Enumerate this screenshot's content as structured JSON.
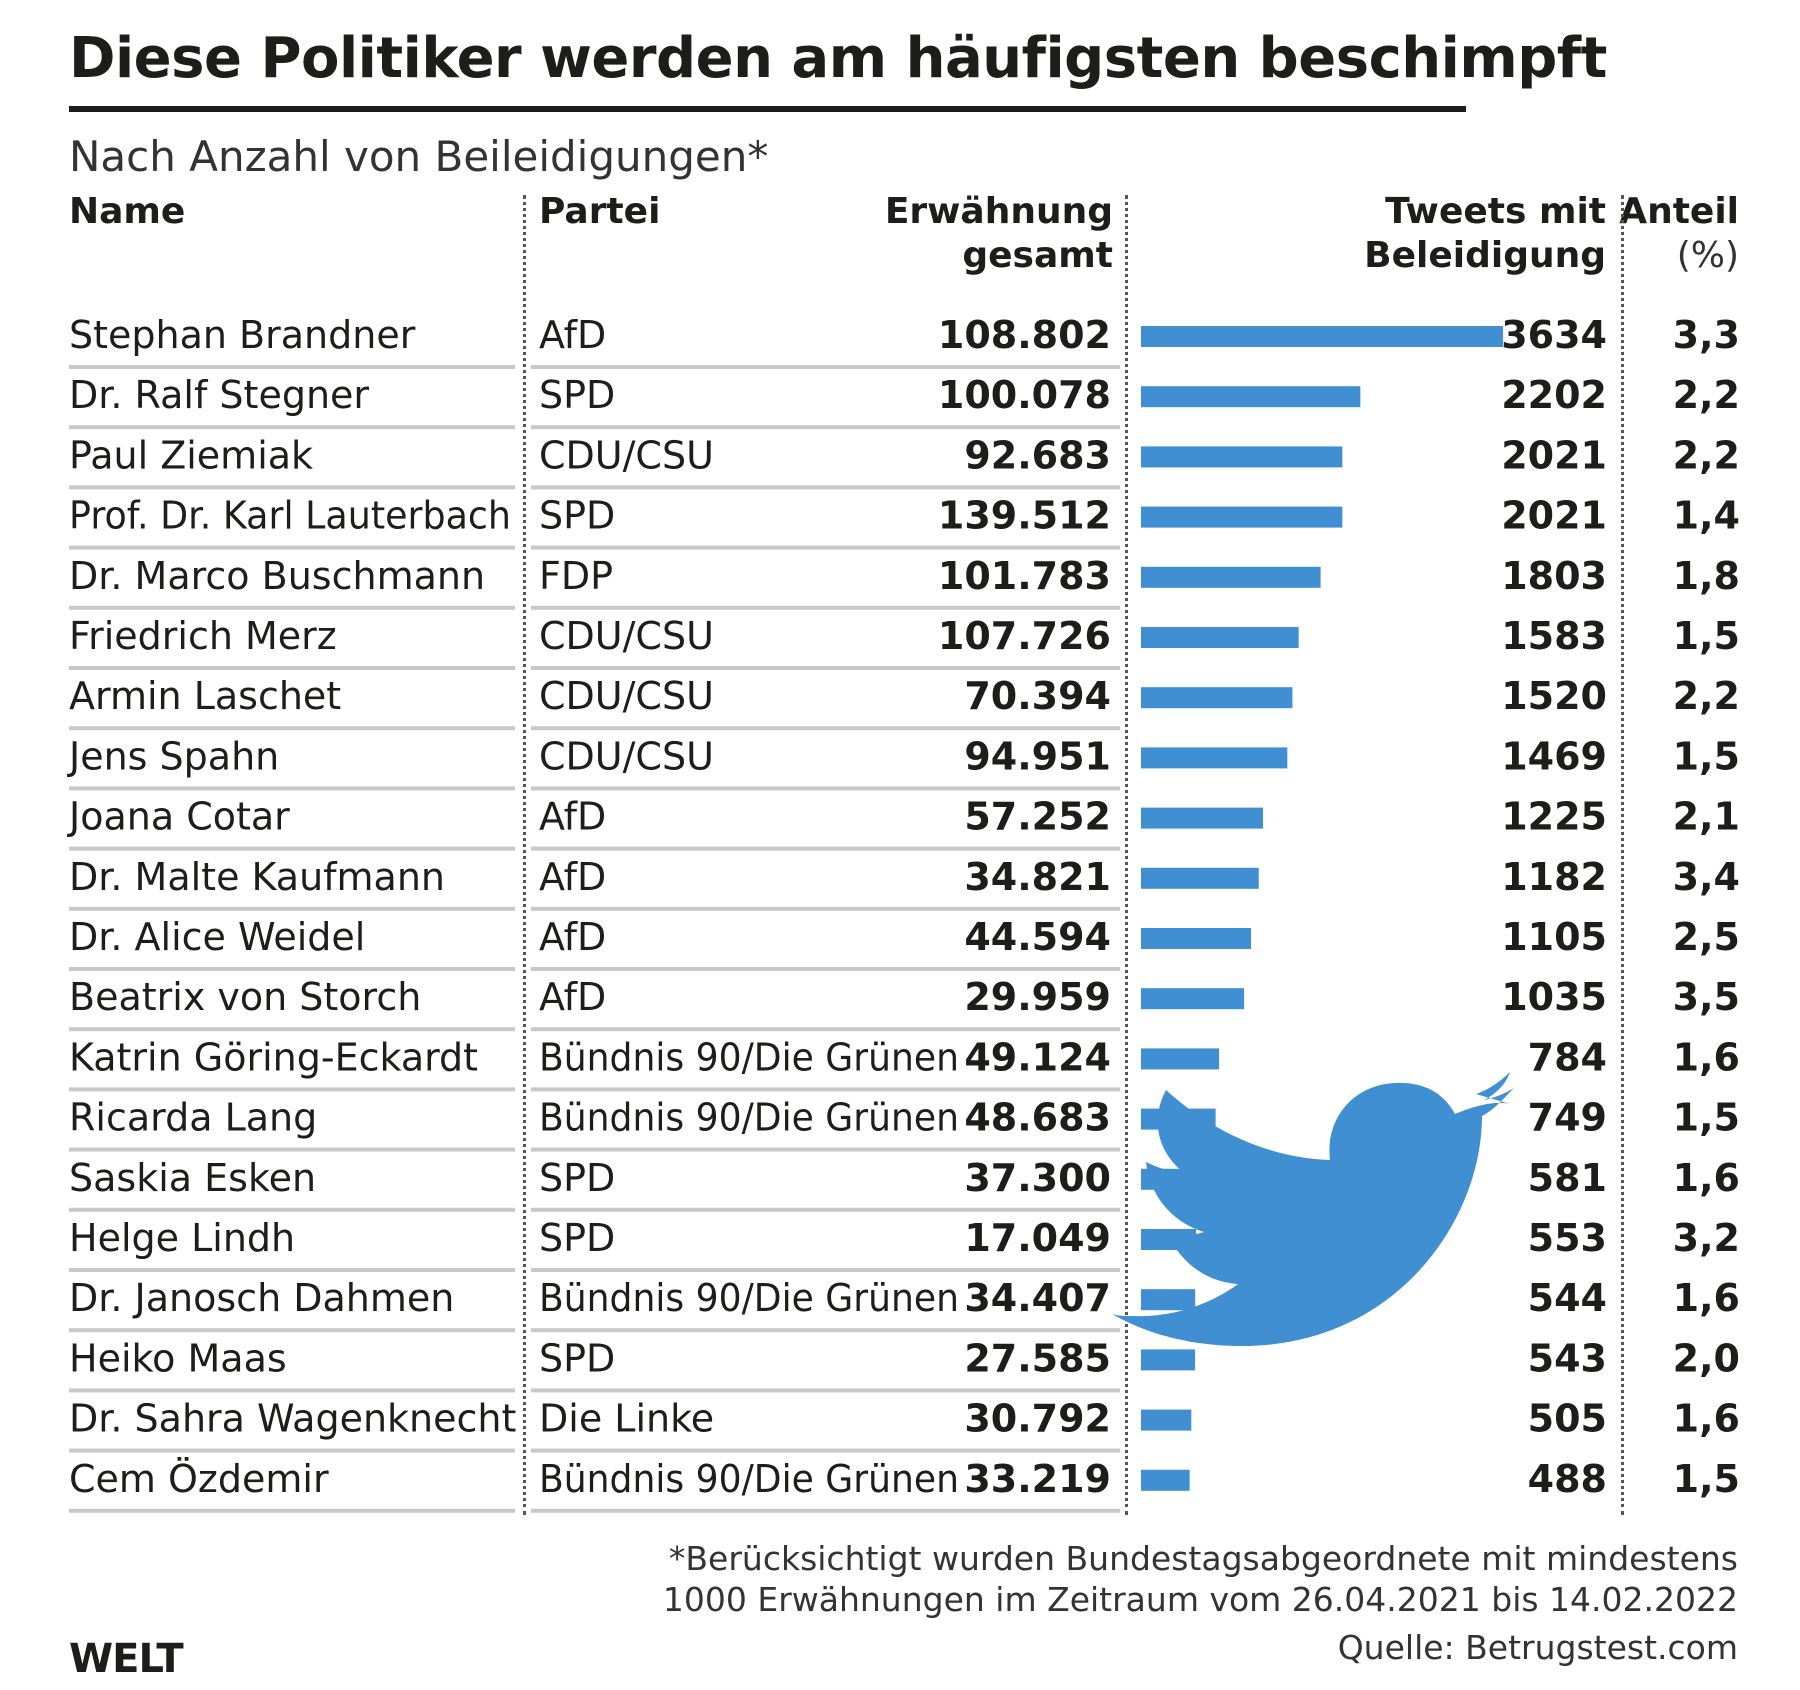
{
  "title": "Diese Politiker werden am häufigsten beschimpft",
  "subtitle": "Nach Anzahl von Beileidigungen*",
  "headers": {
    "name": "Name",
    "partei": "Partei",
    "erwaehnung_1": "Erwähnung",
    "erwaehnung_2": "gesamt",
    "tweets_1": "Tweets mit",
    "tweets_2": "Beleidigung",
    "anteil_1": "Anteil",
    "anteil_2": "(%)"
  },
  "colors": {
    "bar": "#3f8fd2",
    "rule": "#c8c8c8",
    "text": "#1d1d1b",
    "bird": "#3f8fd2"
  },
  "icons": {
    "bird": "bird-icon"
  },
  "chart_data": {
    "type": "bar",
    "orientation": "horizontal",
    "title": "Diese Politiker werden am häufigsten beschimpft",
    "subtitle": "Nach Anzahl von Beileidigungen*",
    "columns": [
      "Name",
      "Partei",
      "Erwähnung gesamt",
      "Tweets mit Beleidigung",
      "Anteil (%)"
    ],
    "rows": [
      {
        "name": "Stephan Brandner",
        "party": "AfD",
        "mentions": "108.802",
        "tweets": 3634,
        "share": "3,3"
      },
      {
        "name": "Dr. Ralf Stegner",
        "party": "SPD",
        "mentions": "100.078",
        "tweets": 2202,
        "share": "2,2"
      },
      {
        "name": "Paul Ziemiak",
        "party": "CDU/CSU",
        "mentions": "92.683",
        "tweets": 2021,
        "share": "2,2"
      },
      {
        "name": "Prof. Dr. Karl Lauterbach",
        "party": "SPD",
        "mentions": "139.512",
        "tweets": 2021,
        "share": "1,4"
      },
      {
        "name": "Dr. Marco Buschmann",
        "party": "FDP",
        "mentions": "101.783",
        "tweets": 1803,
        "share": "1,8"
      },
      {
        "name": "Friedrich Merz",
        "party": "CDU/CSU",
        "mentions": "107.726",
        "tweets": 1583,
        "share": "1,5"
      },
      {
        "name": "Armin Laschet",
        "party": "CDU/CSU",
        "mentions": "70.394",
        "tweets": 1520,
        "share": "2,2"
      },
      {
        "name": "Jens Spahn",
        "party": "CDU/CSU",
        "mentions": "94.951",
        "tweets": 1469,
        "share": "1,5"
      },
      {
        "name": "Joana Cotar",
        "party": "AfD",
        "mentions": "57.252",
        "tweets": 1225,
        "share": "2,1"
      },
      {
        "name": "Dr. Malte Kaufmann",
        "party": "AfD",
        "mentions": "34.821",
        "tweets": 1182,
        "share": "3,4"
      },
      {
        "name": "Dr. Alice Weidel",
        "party": "AfD",
        "mentions": "44.594",
        "tweets": 1105,
        "share": "2,5"
      },
      {
        "name": "Beatrix von Storch",
        "party": "AfD",
        "mentions": "29.959",
        "tweets": 1035,
        "share": "3,5"
      },
      {
        "name": "Katrin Göring-Eckardt",
        "party": "Bündnis 90/Die Grünen",
        "mentions": "49.124",
        "tweets": 784,
        "share": "1,6"
      },
      {
        "name": "Ricarda Lang",
        "party": "Bündnis 90/Die Grünen",
        "mentions": "48.683",
        "tweets": 749,
        "share": "1,5"
      },
      {
        "name": "Saskia Esken",
        "party": "SPD",
        "mentions": "37.300",
        "tweets": 581,
        "share": "1,6"
      },
      {
        "name": "Helge Lindh",
        "party": "SPD",
        "mentions": "17.049",
        "tweets": 553,
        "share": "3,2"
      },
      {
        "name": "Dr. Janosch Dahmen",
        "party": "Bündnis 90/Die Grünen",
        "mentions": "34.407",
        "tweets": 544,
        "share": "1,6"
      },
      {
        "name": "Heiko Maas",
        "party": "SPD",
        "mentions": "27.585",
        "tweets": 543,
        "share": "2,0"
      },
      {
        "name": "Dr. Sahra Wagenknecht",
        "party": "Die Linke",
        "mentions": "30.792",
        "tweets": 505,
        "share": "1,6"
      },
      {
        "name": "Cem Özdemir",
        "party": "Bündnis 90/Die Grünen",
        "mentions": "33.219",
        "tweets": 488,
        "share": "1,5"
      }
    ],
    "xlim": [
      0,
      3634
    ]
  },
  "footnote_1": "*Berücksichtigt wurden Bundestagsabgeordnete mit mindestens",
  "footnote_2": "1000 Erwähnungen im Zeitraum vom 26.04.2021 bis 14.02.2022",
  "source": "Quelle: Betrugstest.com",
  "brand": "WELT"
}
